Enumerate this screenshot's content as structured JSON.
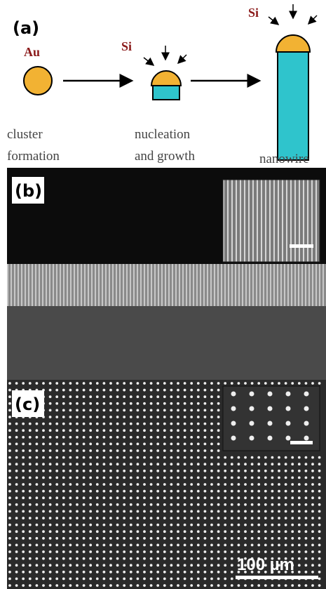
{
  "panels": {
    "a": {
      "label": "(a)",
      "au": "Au",
      "si_1": "Si",
      "si_2": "Si",
      "stages": [
        [
          "cluster",
          "formation"
        ],
        [
          "nucleation",
          "and growth"
        ],
        [
          "nanowire"
        ]
      ]
    },
    "b": {
      "label": "(b)"
    },
    "c": {
      "label": "(c)",
      "scale_bar": "100 µm"
    }
  }
}
